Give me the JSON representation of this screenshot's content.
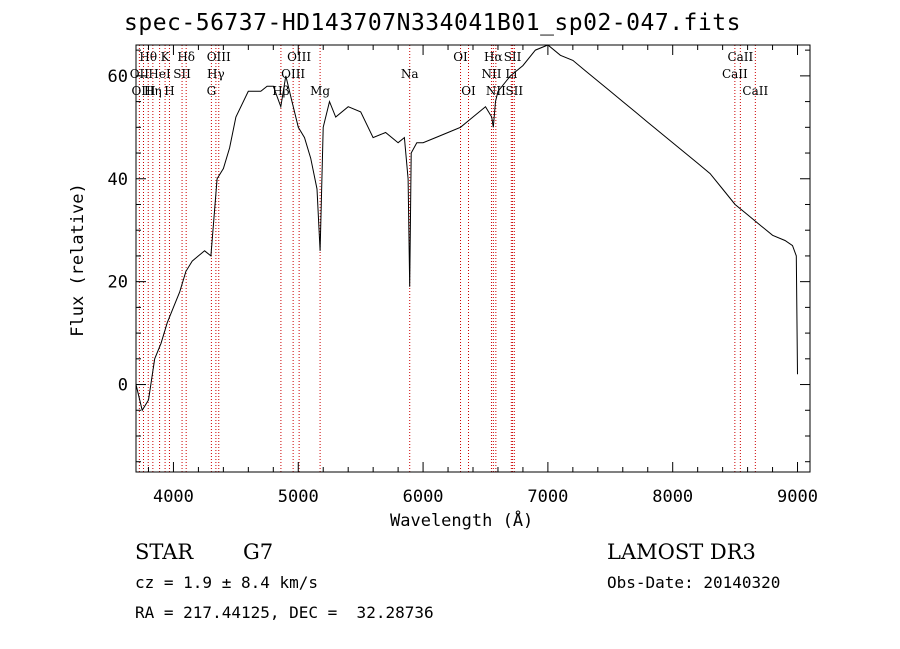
{
  "chart_data": {
    "type": "line",
    "title": "spec-56737-HD143707N334041B01_sp02-047.fits",
    "xlabel": "Wavelength (Å)",
    "ylabel": "Flux (relative)",
    "xlim": [
      3700,
      9100
    ],
    "ylim": [
      -17,
      66
    ],
    "xticks": [
      4000,
      5000,
      6000,
      7000,
      8000,
      9000
    ],
    "yticks": [
      0,
      20,
      40,
      60
    ],
    "series": [
      {
        "name": "flux",
        "x": [
          3700,
          3750,
          3800,
          3850,
          3900,
          3950,
          4000,
          4050,
          4100,
          4150,
          4200,
          4250,
          4300,
          4350,
          4400,
          4450,
          4500,
          4600,
          4700,
          4750,
          4800,
          4860,
          4900,
          4950,
          5000,
          5050,
          5100,
          5150,
          5175,
          5200,
          5250,
          5300,
          5400,
          5500,
          5600,
          5700,
          5800,
          5850,
          5880,
          5893,
          5905,
          5950,
          6000,
          6100,
          6200,
          6300,
          6400,
          6500,
          6550,
          6563,
          6580,
          6600,
          6700,
          6800,
          6900,
          7000,
          7100,
          7200,
          7300,
          7400,
          7500,
          7600,
          7700,
          7800,
          7900,
          8000,
          8100,
          8200,
          8300,
          8400,
          8500,
          8600,
          8700,
          8800,
          8900,
          8960,
          8990,
          9000
        ],
        "y": [
          0,
          -5,
          -3,
          5,
          8,
          12,
          15,
          18,
          22,
          24,
          25,
          26,
          25,
          40,
          42,
          46,
          52,
          57,
          57,
          58,
          58,
          54,
          60,
          55,
          50,
          48,
          44,
          38,
          26,
          50,
          55,
          52,
          54,
          53,
          48,
          49,
          47,
          48,
          40,
          19,
          45,
          47,
          47,
          48,
          49,
          50,
          52,
          54,
          52,
          50,
          55,
          57,
          60,
          62,
          65,
          66,
          64,
          63,
          61,
          59,
          57,
          55,
          53,
          51,
          49,
          47,
          45,
          43,
          41,
          38,
          35,
          33,
          31,
          29,
          28,
          27,
          25,
          2
        ]
      }
    ],
    "lines": [
      {
        "label": "Hθ",
        "x": 3798,
        "row": 1
      },
      {
        "label": "OII",
        "x": 3727,
        "row": 2
      },
      {
        "label": "OIII",
        "x": 3760,
        "row": 3
      },
      {
        "label": "K",
        "x": 3933,
        "row": 1
      },
      {
        "label": "HeI",
        "x": 3889,
        "row": 2
      },
      {
        "label": "Hη",
        "x": 3835,
        "row": 3
      },
      {
        "label": "SII",
        "x": 4069,
        "row": 2
      },
      {
        "label": "H",
        "x": 3968,
        "row": 3
      },
      {
        "label": "Hδ",
        "x": 4102,
        "row": 1
      },
      {
        "label": "OIII",
        "x": 4363,
        "row": 1
      },
      {
        "label": "Hγ",
        "x": 4340,
        "row": 2
      },
      {
        "label": "G",
        "x": 4304,
        "row": 3
      },
      {
        "label": "OIII",
        "x": 5007,
        "row": 1
      },
      {
        "label": "OIII",
        "x": 4959,
        "row": 2
      },
      {
        "label": "Hβ",
        "x": 4861,
        "row": 3
      },
      {
        "label": "Mg",
        "x": 5175,
        "row": 3
      },
      {
        "label": "Na",
        "x": 5893,
        "row": 2
      },
      {
        "label": "OI",
        "x": 6300,
        "row": 1
      },
      {
        "label": "OI",
        "x": 6364,
        "row": 3
      },
      {
        "label": "Hα",
        "x": 6563,
        "row": 1
      },
      {
        "label": "SII",
        "x": 6717,
        "row": 1
      },
      {
        "label": "NII",
        "x": 6548,
        "row": 2
      },
      {
        "label": "Li",
        "x": 6707,
        "row": 2
      },
      {
        "label": "NII",
        "x": 6583,
        "row": 3
      },
      {
        "label": "SII",
        "x": 6731,
        "row": 3
      },
      {
        "label": "CaII",
        "x": 8542,
        "row": 1
      },
      {
        "label": "CaII",
        "x": 8498,
        "row": 2
      },
      {
        "label": "CaII",
        "x": 8662,
        "row": 3
      }
    ]
  },
  "info": {
    "class_type": "STAR",
    "subclass": "G7",
    "cz": "cz = 1.9 ± 8.4 km/s",
    "radec": "RA = 217.44125, DEC =  32.28736",
    "survey": "LAMOST DR3",
    "obs_date": "Obs-Date: 20140320"
  },
  "colors": {
    "frame": "#000000",
    "line_marker": "#cc0000",
    "spectrum": "#000000"
  }
}
